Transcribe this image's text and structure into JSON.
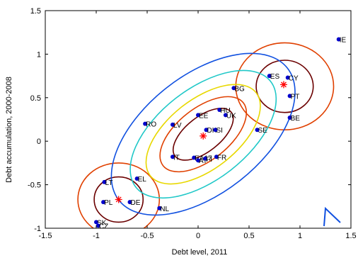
{
  "chart_data": {
    "type": "scatter",
    "title": "",
    "xlabel": "Debt level, 2011",
    "ylabel": "Debt accumulation, 2000-2008",
    "xlim": [
      -1.5,
      1.5
    ],
    "ylim": [
      -1,
      1.5
    ],
    "grid": false,
    "x_ticks": [
      "-1.5",
      "-1",
      "-0.5",
      "0",
      "0.5",
      "1",
      "1.5"
    ],
    "y_ticks": [
      "-1",
      "-0.5",
      "0",
      "0.5",
      "1",
      "1.5"
    ],
    "colors": {
      "points": "#0000cc",
      "centroids": "#ff0000",
      "contours": [
        "#6b0000",
        "#e04000",
        "#e8d800",
        "#20c8c8",
        "#1050e0"
      ]
    },
    "points": [
      {
        "label": "IE",
        "x": 1.38,
        "y": 1.17
      },
      {
        "label": "ES",
        "x": 0.7,
        "y": 0.75
      },
      {
        "label": "CY",
        "x": 0.88,
        "y": 0.73
      },
      {
        "label": "PT",
        "x": 0.9,
        "y": 0.52
      },
      {
        "label": "BE",
        "x": 0.9,
        "y": 0.27
      },
      {
        "label": "BG",
        "x": 0.35,
        "y": 0.61
      },
      {
        "label": "HU",
        "x": 0.21,
        "y": 0.36
      },
      {
        "label": "UK",
        "x": 0.27,
        "y": 0.3
      },
      {
        "label": "EE",
        "x": 0.0,
        "y": 0.3
      },
      {
        "label": "DK",
        "x": 0.08,
        "y": 0.13
      },
      {
        "label": "SI",
        "x": 0.17,
        "y": 0.13
      },
      {
        "label": "SE",
        "x": 0.58,
        "y": 0.13
      },
      {
        "label": "RO",
        "x": -0.52,
        "y": 0.2
      },
      {
        "label": "LV",
        "x": -0.25,
        "y": 0.19
      },
      {
        "label": "EA17",
        "x": -0.04,
        "y": -0.19
      },
      {
        "label": "AT",
        "x": 0.0,
        "y": -0.22
      },
      {
        "label": "FI",
        "x": 0.07,
        "y": -0.2
      },
      {
        "label": "FR",
        "x": 0.18,
        "y": -0.18
      },
      {
        "label": "IT",
        "x": -0.25,
        "y": -0.18
      },
      {
        "label": "LT",
        "x": -0.92,
        "y": -0.47
      },
      {
        "label": "EL",
        "x": -0.6,
        "y": -0.43
      },
      {
        "label": "PL",
        "x": -0.93,
        "y": -0.7
      },
      {
        "label": "DE",
        "x": -0.67,
        "y": -0.7
      },
      {
        "label": "NL",
        "x": -0.38,
        "y": -0.77
      },
      {
        "label": "SK",
        "x": -1.0,
        "y": -0.93
      },
      {
        "label": "CZ",
        "x": -0.98,
        "y": -0.97
      }
    ],
    "centroids": [
      {
        "x": 0.84,
        "y": 0.65
      },
      {
        "x": 0.05,
        "y": 0.06
      },
      {
        "x": -0.78,
        "y": -0.67
      }
    ],
    "contour_groups": [
      {
        "cx": 0.85,
        "cy": 0.63,
        "rings": [
          [
            0.28,
            0.3,
            0
          ],
          [
            0.48,
            0.5,
            1
          ]
        ]
      },
      {
        "cx": -0.78,
        "cy": -0.67,
        "rings": [
          [
            0.24,
            0.26,
            0
          ],
          [
            0.4,
            0.42,
            1
          ]
        ]
      },
      {
        "cx": 0.05,
        "cy": 0.08,
        "rings": [
          [
            0.35,
            0.2,
            0
          ],
          [
            0.5,
            0.3,
            1
          ],
          [
            0.66,
            0.4,
            2
          ],
          [
            0.84,
            0.52,
            3
          ],
          [
            1.05,
            0.68,
            4
          ]
        ]
      }
    ]
  }
}
